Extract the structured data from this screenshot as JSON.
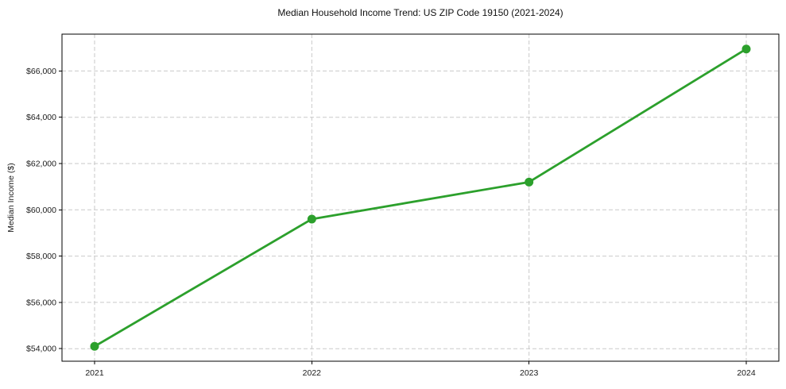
{
  "chart_data": {
    "type": "line",
    "title": "Median Household Income Trend: US ZIP Code 19150 (2021-2024)",
    "xlabel": "",
    "ylabel": "Median Income ($)",
    "x": [
      2021,
      2022,
      2023,
      2024
    ],
    "xtick_labels": [
      "2021",
      "2022",
      "2023",
      "2024"
    ],
    "series": [
      {
        "values": [
          54100,
          59600,
          61200,
          66950
        ]
      }
    ],
    "yticks": [
      54000,
      56000,
      58000,
      60000,
      62000,
      64000,
      66000
    ],
    "ytick_labels": [
      "$54,000",
      "$56,000",
      "$58,000",
      "$60,000",
      "$62,000",
      "$64,000",
      "$66,000"
    ],
    "xlim": [
      2020.85,
      2024.15
    ],
    "ylim": [
      53458,
      67592
    ],
    "grid": true,
    "grid_style": "dashed",
    "legend": "none",
    "colors": {
      "line": "#2ca02c",
      "marker": "#2ca02c",
      "grid": "#c9c9c9",
      "spine": "#000000",
      "tick_text": "#1a1a1a",
      "title_text": "#111111",
      "background": "#ffffff"
    }
  }
}
